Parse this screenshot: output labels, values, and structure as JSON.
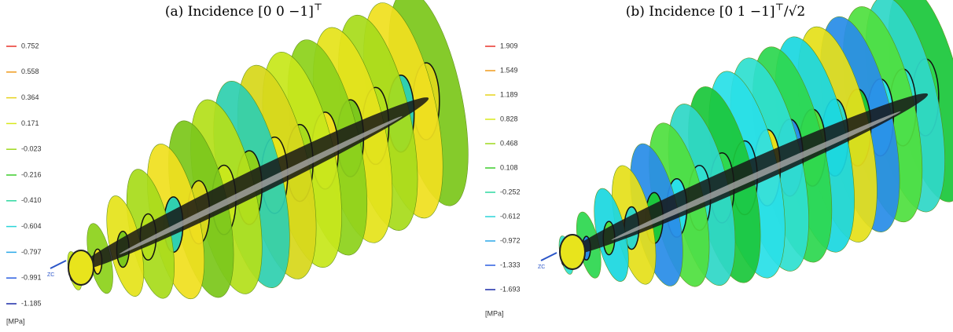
{
  "panels": [
    {
      "caption": {
        "main": "(a) Incidence [0 0 −1]",
        "sup": "⊤",
        "tail": ""
      },
      "legend": [
        {
          "label": "0.752",
          "color": "#e8332a"
        },
        {
          "label": "0.558",
          "color": "#f09a1c"
        },
        {
          "label": "0.364",
          "color": "#e6d21c"
        },
        {
          "label": "0.171",
          "color": "#d8e81c"
        },
        {
          "label": "-0.023",
          "color": "#9ed81c"
        },
        {
          "label": "-0.216",
          "color": "#3ccc2a"
        },
        {
          "label": "-0.410",
          "color": "#2ed8a0"
        },
        {
          "label": "-0.604",
          "color": "#2ad4d8"
        },
        {
          "label": "-0.797",
          "color": "#2aa8e8"
        },
        {
          "label": "-0.991",
          "color": "#2a5ee0"
        },
        {
          "label": "-1.185",
          "color": "#1a2aa8"
        }
      ],
      "unit": "[MPa]",
      "axis_label": "ZC"
    },
    {
      "caption": {
        "main": "(b) Incidence [0 1 −1]",
        "sup": "⊤",
        "tail": "/√2"
      },
      "legend": [
        {
          "label": "1.909",
          "color": "#e8332a"
        },
        {
          "label": "1.549",
          "color": "#f09a1c"
        },
        {
          "label": "1.189",
          "color": "#e6d21c"
        },
        {
          "label": "0.828",
          "color": "#d8e81c"
        },
        {
          "label": "0.468",
          "color": "#9ed81c"
        },
        {
          "label": "0.108",
          "color": "#3ccc2a"
        },
        {
          "label": "-0.252",
          "color": "#2ed8a0"
        },
        {
          "label": "-0.612",
          "color": "#2ad4d8"
        },
        {
          "label": "-0.972",
          "color": "#2aa8e8"
        },
        {
          "label": "-1.333",
          "color": "#2a5ee0"
        },
        {
          "label": "-1.693",
          "color": "#1a2aa8"
        }
      ],
      "unit": "[MPa]",
      "axis_label": "ZC"
    }
  ]
}
